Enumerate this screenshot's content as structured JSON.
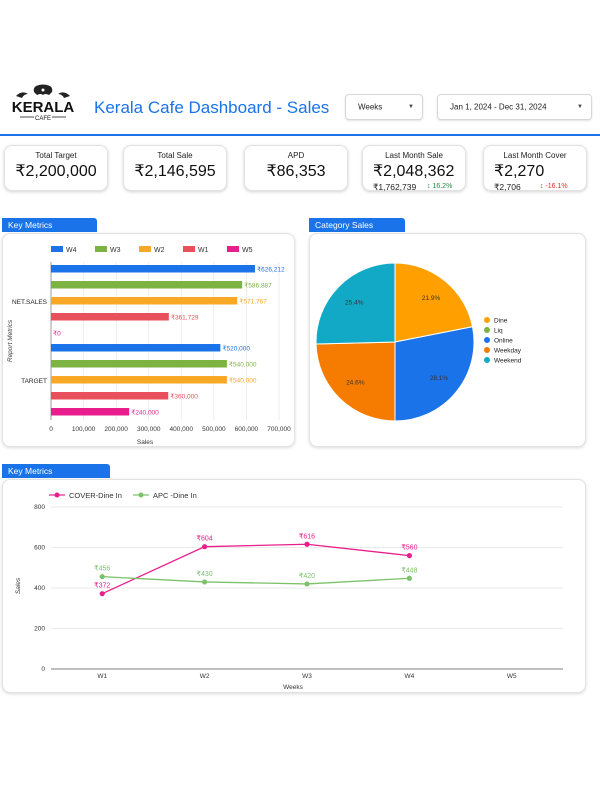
{
  "header": {
    "logo_text": "KERALA",
    "logo_subtext": "CAFE",
    "title": "Kerala Cafe Dashboard - Sales",
    "period_dropdown": "Weeks",
    "date_range": "Jan 1, 2024 - Dec 31, 2024"
  },
  "kpis": [
    {
      "label": "Total Target",
      "value": "₹2,200,000"
    },
    {
      "label": "Total Sale",
      "value": "₹2,146,595"
    },
    {
      "label": "APD",
      "value": "₹86,353"
    },
    {
      "label": "Last Month Sale",
      "value": "₹2,048,362",
      "sub": "₹1,762,739",
      "delta": "↕ 16.2%",
      "delta_dir": "up"
    },
    {
      "label": "Last Month Cover",
      "value": "₹2,270",
      "sub": "₹2,706",
      "delta": "↕ -16.1%",
      "delta_dir": "down"
    }
  ],
  "key_metrics_bar": {
    "tag": "Key Metrics",
    "chart_data": {
      "type": "bar",
      "orientation": "horizontal",
      "categories": [
        "NET.SALES",
        "TARGET"
      ],
      "series": [
        {
          "name": "W4",
          "color": "#1a73e8",
          "values": [
            626212,
            520000
          ],
          "labels": [
            "₹626,212",
            "₹520,000"
          ]
        },
        {
          "name": "W3",
          "color": "#7cb342",
          "values": [
            586887,
            540000
          ],
          "labels": [
            "₹586,887",
            "₹540,000"
          ]
        },
        {
          "name": "W2",
          "color": "#f9a825",
          "values": [
            571767,
            540000
          ],
          "labels": [
            "₹571,767",
            "₹540,000"
          ]
        },
        {
          "name": "W1",
          "color": "#e8505b",
          "values": [
            361729,
            360000
          ],
          "labels": [
            "₹361,729",
            "₹360,000"
          ]
        },
        {
          "name": "W5",
          "color": "#e91e8c",
          "values": [
            0,
            240000
          ],
          "labels": [
            "₹0",
            "₹240,000"
          ]
        }
      ],
      "xticks": [
        "0",
        "100,000",
        "200,000",
        "300,000",
        "400,000",
        "500,000",
        "600,000",
        "700,000"
      ],
      "xlim": [
        0,
        700000
      ],
      "xlabel": "Sales",
      "ylabel": "Report Metrics",
      "legend": "top",
      "grid": true
    }
  },
  "category_sales": {
    "tag": "Category Sales",
    "chart_data": {
      "type": "pie",
      "labels": [
        "Dine",
        "Liq",
        "Online",
        "Weekday",
        "Weekend"
      ],
      "slices": [
        {
          "name": "Dine",
          "value": 21.9,
          "label": "21.9%",
          "color": "#ffa000"
        },
        {
          "name": "Online",
          "value": 28.1,
          "label": "28.1%",
          "color": "#1a73e8"
        },
        {
          "name": "Weekday",
          "value": 24.6,
          "label": "24.6%",
          "color": "#f57c00"
        },
        {
          "name": "Weekend",
          "value": 25.4,
          "label": "25.4%",
          "color": "#12a9c7"
        }
      ],
      "legend_items": [
        {
          "name": "Dine",
          "color": "#ffa000"
        },
        {
          "name": "Liq",
          "color": "#7cb342"
        },
        {
          "name": "Online",
          "color": "#1a73e8"
        },
        {
          "name": "Weekday",
          "color": "#f57c00"
        },
        {
          "name": "Weekend",
          "color": "#12a9c7"
        }
      ],
      "legend": "right"
    }
  },
  "key_metrics_line": {
    "tag": "Key Metrics",
    "chart_data": {
      "type": "line",
      "categories": [
        "W1",
        "W2",
        "W3",
        "W4",
        "W5"
      ],
      "series": [
        {
          "name": "COVER-Dine In",
          "color": "#e91e8c",
          "values": [
            372,
            604,
            616,
            560,
            null
          ],
          "labels": [
            "₹372",
            "₹604",
            "₹616",
            "₹560",
            ""
          ]
        },
        {
          "name": "APC -Dine In",
          "color": "#7cc26a",
          "values": [
            456,
            430,
            420,
            448,
            null
          ],
          "labels": [
            "₹456",
            "₹430",
            "₹420",
            "₹448",
            ""
          ]
        }
      ],
      "yticks": [
        "0",
        "200",
        "400",
        "600",
        "800"
      ],
      "ylim": [
        0,
        800
      ],
      "xlabel": "Weeks",
      "ylabel": "Sales",
      "legend": "top-left",
      "grid": true
    }
  }
}
